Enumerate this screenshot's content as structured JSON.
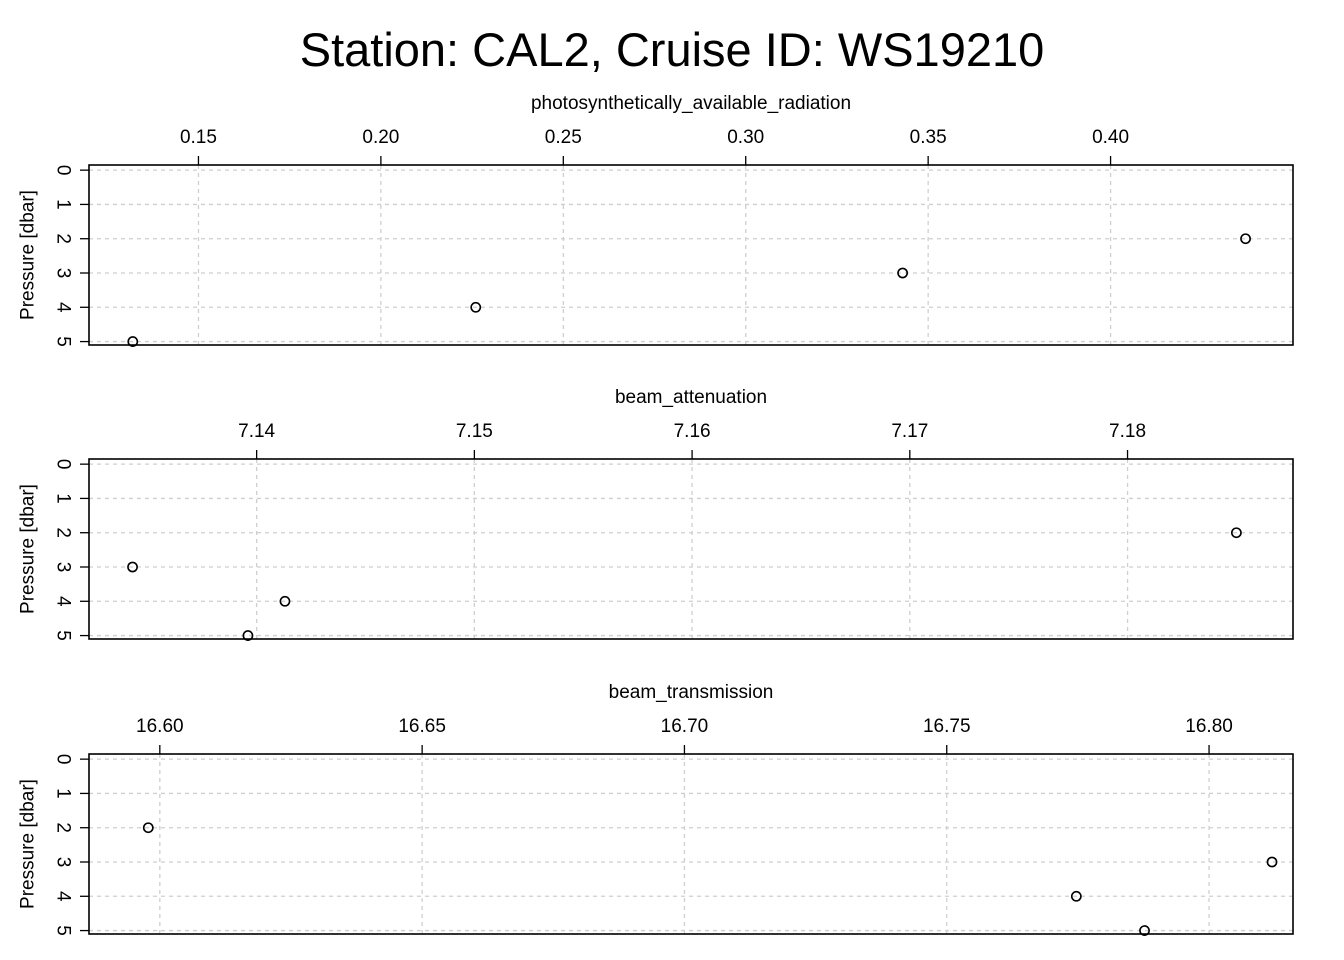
{
  "title": "Station: CAL2, Cruise ID: WS19210",
  "chart_data": [
    {
      "type": "scatter",
      "xlabel": "photosynthetically_available_radiation",
      "ylabel": "Pressure [dbar]",
      "xlim": [
        0.12,
        0.45
      ],
      "ylim": [
        5.1,
        -0.15
      ],
      "x_ticks": [
        "0.15",
        "0.20",
        "0.25",
        "0.30",
        "0.35",
        "0.40"
      ],
      "y_ticks": [
        "0",
        "1",
        "2",
        "3",
        "4",
        "5"
      ],
      "grid": true,
      "points": [
        {
          "x": 0.437,
          "y": 2
        },
        {
          "x": 0.343,
          "y": 3
        },
        {
          "x": 0.226,
          "y": 4
        },
        {
          "x": 0.132,
          "y": 5
        }
      ]
    },
    {
      "type": "scatter",
      "xlabel": "beam_attenuation",
      "ylabel": "Pressure [dbar]",
      "xlim": [
        7.1323,
        7.1876
      ],
      "ylim": [
        5.1,
        -0.15
      ],
      "x_ticks": [
        "7.14",
        "7.15",
        "7.16",
        "7.17",
        "7.18"
      ],
      "y_ticks": [
        "0",
        "1",
        "2",
        "3",
        "4",
        "5"
      ],
      "grid": true,
      "points": [
        {
          "x": 7.185,
          "y": 2
        },
        {
          "x": 7.1343,
          "y": 3
        },
        {
          "x": 7.1413,
          "y": 4
        },
        {
          "x": 7.1396,
          "y": 5
        }
      ]
    },
    {
      "type": "scatter",
      "xlabel": "beam_transmission",
      "ylabel": "Pressure [dbar]",
      "xlim": [
        16.5865,
        16.816
      ],
      "ylim": [
        5.1,
        -0.15
      ],
      "x_ticks": [
        "16.60",
        "16.65",
        "16.70",
        "16.75",
        "16.80"
      ],
      "y_ticks": [
        "0",
        "1",
        "2",
        "3",
        "4",
        "5"
      ],
      "grid": true,
      "points": [
        {
          "x": 16.5978,
          "y": 2
        },
        {
          "x": 16.812,
          "y": 3
        },
        {
          "x": 16.7747,
          "y": 4
        },
        {
          "x": 16.7877,
          "y": 5
        }
      ]
    }
  ]
}
